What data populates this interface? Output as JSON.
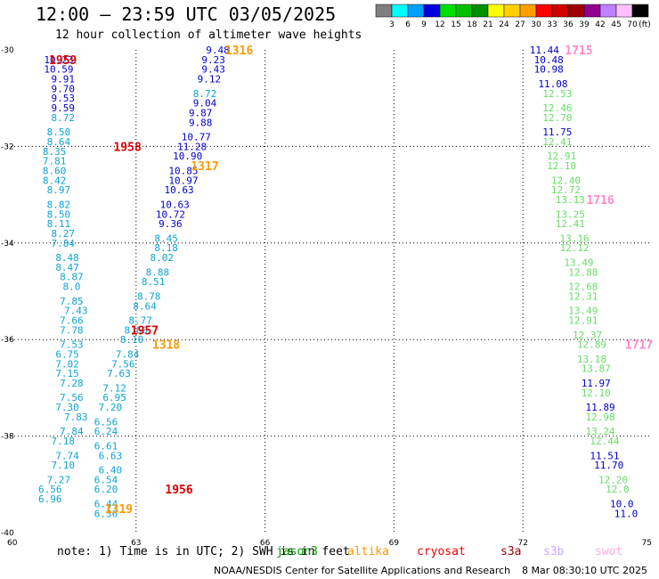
{
  "header": {
    "title": "12:00 — 23:59 UTC 03/05/2025",
    "subtitle": "12 hour collection of altimeter wave heights"
  },
  "colorbar": {
    "units": "(ft)",
    "colors": [
      "#7f7f7f",
      "#00ffff",
      "#00a0ff",
      "#0000e0",
      "#00e000",
      "#00c000",
      "#009000",
      "#ffff00",
      "#ffd000",
      "#ffa000",
      "#ff0000",
      "#d00000",
      "#a00000",
      "#900090",
      "#c080ff",
      "#ffc0ff",
      "#000000"
    ],
    "tick_labels": [
      "3",
      "6",
      "9",
      "12",
      "15",
      "18",
      "21",
      "24",
      "27",
      "30",
      "33",
      "36",
      "39",
      "42",
      "45",
      "70"
    ]
  },
  "note": "note: 1) Time is in UTC; 2) SWH is in feet",
  "legend": [
    {
      "name": "jason3",
      "color": "#00a000"
    },
    {
      "name": "altika",
      "color": "#ff9900"
    },
    {
      "name": "cryosat",
      "color": "#ee0000"
    },
    {
      "name": "s3a",
      "color": "#990000"
    },
    {
      "name": "s3b",
      "color": "#ccaaff"
    },
    {
      "name": "swot",
      "color": "#ffaadd"
    }
  ],
  "footer": {
    "credit": "NOAA/NESDIS Center for Satellite Applications and Research",
    "timestamp": "8 Mar 08:30:10 UTC 2025"
  },
  "chart_data": {
    "type": "scatter",
    "title": "12 hour collection of altimeter wave heights",
    "x_axis": {
      "ticks": [
        60,
        63,
        66,
        69,
        72,
        75
      ],
      "range": [
        60,
        75
      ],
      "grid": "dotted"
    },
    "y_axis": {
      "ticks": [
        -30,
        -32,
        -34,
        -36,
        -38,
        -40
      ],
      "range": [
        -40,
        -30
      ],
      "grid": "dotted"
    },
    "colors": {
      "cyan": "#0fa3d3",
      "blue": "#0000c8",
      "green": "#66dd66",
      "red": "#dd0000",
      "orange": "#ff9900",
      "pink": "#ff88cc"
    },
    "passes": [
      {
        "label": "1959",
        "satellite": "cryosat",
        "lon": 61.3,
        "lat": -30.2,
        "color": "red"
      },
      {
        "label": "1958",
        "satellite": "cryosat",
        "lon": 62.8,
        "lat": -32.0,
        "color": "red"
      },
      {
        "label": "1957",
        "satellite": "cryosat",
        "lon": 63.2,
        "lat": -35.8,
        "color": "red"
      },
      {
        "label": "1956",
        "satellite": "cryosat",
        "lon": 64.0,
        "lat": -39.1,
        "color": "red"
      },
      {
        "label": "1316",
        "satellite": "altika",
        "lon": 65.4,
        "lat": -30.0,
        "color": "orange"
      },
      {
        "label": "1317",
        "satellite": "altika",
        "lon": 64.6,
        "lat": -32.4,
        "color": "orange"
      },
      {
        "label": "1318",
        "satellite": "altika",
        "lon": 63.7,
        "lat": -36.1,
        "color": "orange"
      },
      {
        "label": "1319",
        "satellite": "altika",
        "lon": 62.6,
        "lat": -39.5,
        "color": "orange"
      },
      {
        "label": "1715",
        "satellite": "swot",
        "lon": 73.3,
        "lat": -30.0,
        "color": "pink"
      },
      {
        "label": "1716",
        "satellite": "swot",
        "lon": 73.8,
        "lat": -33.1,
        "color": "pink"
      },
      {
        "label": "1717",
        "satellite": "swot",
        "lon": 74.7,
        "lat": -36.1,
        "color": "pink"
      }
    ],
    "tracks": [
      {
        "name": "cryosat track 1959 (cyan/blue)",
        "points": [
          {
            "lon": 61.2,
            "lat": -30.2,
            "swh": 10.23,
            "color": "blue"
          },
          {
            "lon": 61.2,
            "lat": -30.4,
            "swh": 10.59,
            "color": "blue"
          },
          {
            "lon": 61.3,
            "lat": -30.6,
            "swh": 9.91,
            "color": "blue"
          },
          {
            "lon": 61.3,
            "lat": -30.8,
            "swh": 9.7,
            "color": "blue"
          },
          {
            "lon": 61.3,
            "lat": -31.0,
            "swh": 9.53,
            "color": "blue"
          },
          {
            "lon": 61.3,
            "lat": -31.2,
            "swh": 9.59,
            "color": "blue"
          },
          {
            "lon": 61.3,
            "lat": -31.4,
            "swh": 8.72,
            "color": "cyan"
          },
          {
            "lon": 61.2,
            "lat": -31.7,
            "swh": 8.5,
            "color": "cyan"
          },
          {
            "lon": 61.2,
            "lat": -31.9,
            "swh": 8.64,
            "color": "cyan"
          },
          {
            "lon": 61.1,
            "lat": -32.1,
            "swh": 8.35,
            "color": "cyan"
          },
          {
            "lon": 61.1,
            "lat": -32.3,
            "swh": 7.81,
            "color": "cyan"
          },
          {
            "lon": 61.1,
            "lat": -32.5,
            "swh": 8.6,
            "color": "cyan"
          },
          {
            "lon": 61.1,
            "lat": -32.7,
            "swh": 8.42,
            "color": "cyan"
          },
          {
            "lon": 61.2,
            "lat": -32.9,
            "swh": 8.97,
            "color": "cyan"
          },
          {
            "lon": 61.2,
            "lat": -33.2,
            "swh": 8.82,
            "color": "cyan"
          },
          {
            "lon": 61.2,
            "lat": -33.4,
            "swh": 8.5,
            "color": "cyan"
          },
          {
            "lon": 61.2,
            "lat": -33.6,
            "swh": 8.11,
            "color": "cyan"
          },
          {
            "lon": 61.3,
            "lat": -33.8,
            "swh": 8.27,
            "color": "cyan"
          },
          {
            "lon": 61.3,
            "lat": -34.0,
            "swh": 7.84,
            "color": "cyan"
          },
          {
            "lon": 61.4,
            "lat": -34.3,
            "swh": 8.48,
            "color": "cyan"
          },
          {
            "lon": 61.4,
            "lat": -34.5,
            "swh": 8.47,
            "color": "cyan"
          },
          {
            "lon": 61.5,
            "lat": -34.7,
            "swh": 8.87,
            "color": "cyan"
          },
          {
            "lon": 61.5,
            "lat": -34.9,
            "swh": 8.0,
            "color": "cyan"
          },
          {
            "lon": 61.5,
            "lat": -35.2,
            "swh": 7.85,
            "color": "cyan"
          },
          {
            "lon": 61.6,
            "lat": -35.4,
            "swh": 7.43,
            "color": "cyan"
          },
          {
            "lon": 61.5,
            "lat": -35.6,
            "swh": 7.66,
            "color": "cyan"
          },
          {
            "lon": 61.5,
            "lat": -35.8,
            "swh": 7.78,
            "color": "cyan"
          },
          {
            "lon": 61.5,
            "lat": -36.1,
            "swh": 7.53,
            "color": "cyan"
          },
          {
            "lon": 61.4,
            "lat": -36.3,
            "swh": 6.75,
            "color": "cyan"
          },
          {
            "lon": 61.4,
            "lat": -36.5,
            "swh": 7.02,
            "color": "cyan"
          },
          {
            "lon": 61.4,
            "lat": -36.7,
            "swh": 7.15,
            "color": "cyan"
          },
          {
            "lon": 61.5,
            "lat": -36.9,
            "swh": 7.28,
            "color": "cyan"
          },
          {
            "lon": 61.5,
            "lat": -37.2,
            "swh": 7.56,
            "color": "cyan"
          },
          {
            "lon": 61.4,
            "lat": -37.4,
            "swh": 7.3,
            "color": "cyan"
          },
          {
            "lon": 61.6,
            "lat": -37.6,
            "swh": 7.83,
            "color": "cyan"
          },
          {
            "lon": 61.5,
            "lat": -37.9,
            "swh": 7.84,
            "color": "cyan"
          },
          {
            "lon": 61.3,
            "lat": -38.1,
            "swh": 7.18,
            "color": "cyan"
          },
          {
            "lon": 61.4,
            "lat": -38.4,
            "swh": 7.74,
            "color": "cyan"
          },
          {
            "lon": 61.3,
            "lat": -38.6,
            "swh": 7.1,
            "color": "cyan"
          },
          {
            "lon": 61.2,
            "lat": -38.9,
            "swh": 7.27,
            "color": "cyan"
          },
          {
            "lon": 61.0,
            "lat": -39.1,
            "swh": 6.56,
            "color": "cyan"
          },
          {
            "lon": 61.0,
            "lat": -39.3,
            "swh": 6.96,
            "color": "cyan"
          }
        ]
      },
      {
        "name": "altika track 1317/1318 (blue/cyan)",
        "points": [
          {
            "lon": 64.9,
            "lat": -30.0,
            "swh": 9.48,
            "color": "blue"
          },
          {
            "lon": 64.8,
            "lat": -30.2,
            "swh": 9.23,
            "color": "blue"
          },
          {
            "lon": 64.8,
            "lat": -30.4,
            "swh": 9.43,
            "color": "blue"
          },
          {
            "lon": 64.7,
            "lat": -30.6,
            "swh": 9.12,
            "color": "blue"
          },
          {
            "lon": 64.6,
            "lat": -30.9,
            "swh": 8.72,
            "color": "cyan"
          },
          {
            "lon": 64.6,
            "lat": -31.1,
            "swh": 9.04,
            "color": "blue"
          },
          {
            "lon": 64.5,
            "lat": -31.3,
            "swh": 9.87,
            "color": "blue"
          },
          {
            "lon": 64.5,
            "lat": -31.5,
            "swh": 9.88,
            "color": "blue"
          },
          {
            "lon": 64.4,
            "lat": -31.8,
            "swh": 10.77,
            "color": "blue"
          },
          {
            "lon": 64.3,
            "lat": -32.0,
            "swh": 11.28,
            "color": "blue"
          },
          {
            "lon": 64.2,
            "lat": -32.2,
            "swh": 10.9,
            "color": "blue"
          },
          {
            "lon": 64.1,
            "lat": -32.5,
            "swh": 10.85,
            "color": "blue"
          },
          {
            "lon": 64.1,
            "lat": -32.7,
            "swh": 10.97,
            "color": "blue"
          },
          {
            "lon": 64.0,
            "lat": -32.9,
            "swh": 10.63,
            "color": "blue"
          },
          {
            "lon": 63.9,
            "lat": -33.2,
            "swh": 10.63,
            "color": "blue"
          },
          {
            "lon": 63.8,
            "lat": -33.4,
            "swh": 10.72,
            "color": "blue"
          },
          {
            "lon": 63.8,
            "lat": -33.6,
            "swh": 9.36,
            "color": "blue"
          },
          {
            "lon": 63.7,
            "lat": -33.9,
            "swh": 8.45,
            "color": "cyan"
          },
          {
            "lon": 63.7,
            "lat": -34.1,
            "swh": 8.18,
            "color": "cyan"
          },
          {
            "lon": 63.6,
            "lat": -34.3,
            "swh": 8.02,
            "color": "cyan"
          },
          {
            "lon": 63.5,
            "lat": -34.6,
            "swh": 8.88,
            "color": "cyan"
          },
          {
            "lon": 63.4,
            "lat": -34.8,
            "swh": 8.51,
            "color": "cyan"
          },
          {
            "lon": 63.3,
            "lat": -35.1,
            "swh": 8.78,
            "color": "cyan"
          },
          {
            "lon": 63.2,
            "lat": -35.3,
            "swh": 8.64,
            "color": "cyan"
          },
          {
            "lon": 63.1,
            "lat": -35.6,
            "swh": 8.77,
            "color": "cyan"
          },
          {
            "lon": 63.0,
            "lat": -35.8,
            "swh": 8.6,
            "color": "cyan"
          },
          {
            "lon": 62.9,
            "lat": -36.0,
            "swh": 8.1,
            "color": "cyan"
          },
          {
            "lon": 62.8,
            "lat": -36.3,
            "swh": 7.84,
            "color": "cyan"
          },
          {
            "lon": 62.7,
            "lat": -36.5,
            "swh": 7.56,
            "color": "cyan"
          },
          {
            "lon": 62.6,
            "lat": -36.7,
            "swh": 7.63,
            "color": "cyan"
          },
          {
            "lon": 62.5,
            "lat": -37.0,
            "swh": 7.12,
            "color": "cyan"
          },
          {
            "lon": 62.5,
            "lat": -37.2,
            "swh": 6.95,
            "color": "cyan"
          },
          {
            "lon": 62.4,
            "lat": -37.4,
            "swh": 7.2,
            "color": "cyan"
          },
          {
            "lon": 62.3,
            "lat": -37.7,
            "swh": 6.56,
            "color": "cyan"
          },
          {
            "lon": 62.3,
            "lat": -37.9,
            "swh": 6.24,
            "color": "cyan"
          },
          {
            "lon": 62.3,
            "lat": -38.2,
            "swh": 6.61,
            "color": "cyan"
          },
          {
            "lon": 62.4,
            "lat": -38.4,
            "swh": 6.63,
            "color": "cyan"
          },
          {
            "lon": 62.4,
            "lat": -38.7,
            "swh": 6.4,
            "color": "cyan"
          },
          {
            "lon": 62.3,
            "lat": -38.9,
            "swh": 6.54,
            "color": "cyan"
          },
          {
            "lon": 62.3,
            "lat": -39.1,
            "swh": 6.2,
            "color": "cyan"
          },
          {
            "lon": 62.3,
            "lat": -39.4,
            "swh": 6.44,
            "color": "cyan"
          },
          {
            "lon": 62.3,
            "lat": -39.6,
            "swh": 6.36,
            "color": "cyan"
          }
        ]
      },
      {
        "name": "swot track 1715/1716 (blue/green)",
        "points": [
          {
            "lon": 72.5,
            "lat": -30.0,
            "swh": 11.44,
            "color": "blue"
          },
          {
            "lon": 72.6,
            "lat": -30.2,
            "swh": 10.48,
            "color": "blue"
          },
          {
            "lon": 72.6,
            "lat": -30.4,
            "swh": 10.98,
            "color": "blue"
          },
          {
            "lon": 72.7,
            "lat": -30.7,
            "swh": 11.08,
            "color": "blue"
          },
          {
            "lon": 72.8,
            "lat": -30.9,
            "swh": 12.53,
            "color": "green"
          },
          {
            "lon": 72.8,
            "lat": -31.2,
            "swh": 12.46,
            "color": "green"
          },
          {
            "lon": 72.8,
            "lat": -31.4,
            "swh": 12.7,
            "color": "green"
          },
          {
            "lon": 72.8,
            "lat": -31.7,
            "swh": 11.75,
            "color": "blue"
          },
          {
            "lon": 72.8,
            "lat": -31.9,
            "swh": 12.41,
            "color": "green"
          },
          {
            "lon": 72.9,
            "lat": -32.2,
            "swh": 12.91,
            "color": "green"
          },
          {
            "lon": 72.9,
            "lat": -32.4,
            "swh": 12.1,
            "color": "green"
          },
          {
            "lon": 73.0,
            "lat": -32.7,
            "swh": 12.4,
            "color": "green"
          },
          {
            "lon": 73.0,
            "lat": -32.9,
            "swh": 12.72,
            "color": "green"
          },
          {
            "lon": 73.1,
            "lat": -33.1,
            "swh": 13.13,
            "color": "green"
          },
          {
            "lon": 73.1,
            "lat": -33.4,
            "swh": 13.25,
            "color": "green"
          },
          {
            "lon": 73.1,
            "lat": -33.6,
            "swh": 12.41,
            "color": "green"
          },
          {
            "lon": 73.2,
            "lat": -33.9,
            "swh": 13.16,
            "color": "green"
          },
          {
            "lon": 73.2,
            "lat": -34.1,
            "swh": 12.12,
            "color": "green"
          },
          {
            "lon": 73.3,
            "lat": -34.4,
            "swh": 13.49,
            "color": "green"
          },
          {
            "lon": 73.4,
            "lat": -34.6,
            "swh": 12.88,
            "color": "green"
          },
          {
            "lon": 73.4,
            "lat": -34.9,
            "swh": 12.68,
            "color": "green"
          },
          {
            "lon": 73.4,
            "lat": -35.1,
            "swh": 12.31,
            "color": "green"
          },
          {
            "lon": 73.4,
            "lat": -35.4,
            "swh": 13.49,
            "color": "green"
          },
          {
            "lon": 73.4,
            "lat": -35.6,
            "swh": 12.91,
            "color": "green"
          },
          {
            "lon": 73.5,
            "lat": -35.9,
            "swh": 12.37,
            "color": "green"
          },
          {
            "lon": 73.6,
            "lat": -36.1,
            "swh": 12.89,
            "color": "green"
          },
          {
            "lon": 73.6,
            "lat": -36.4,
            "swh": 13.18,
            "color": "green"
          },
          {
            "lon": 73.7,
            "lat": -36.6,
            "swh": 13.87,
            "color": "green"
          },
          {
            "lon": 73.7,
            "lat": -36.9,
            "swh": 11.97,
            "color": "blue"
          },
          {
            "lon": 73.7,
            "lat": -37.1,
            "swh": 12.1,
            "color": "green"
          },
          {
            "lon": 73.8,
            "lat": -37.4,
            "swh": 11.89,
            "color": "blue"
          },
          {
            "lon": 73.8,
            "lat": -37.6,
            "swh": 12.98,
            "color": "green"
          },
          {
            "lon": 73.8,
            "lat": -37.9,
            "swh": 13.24,
            "color": "green"
          },
          {
            "lon": 73.9,
            "lat": -38.1,
            "swh": 12.44,
            "color": "green"
          },
          {
            "lon": 73.9,
            "lat": -38.4,
            "swh": 11.51,
            "color": "blue"
          },
          {
            "lon": 74.0,
            "lat": -38.6,
            "swh": 11.7,
            "color": "blue"
          },
          {
            "lon": 74.1,
            "lat": -38.9,
            "swh": 12.2,
            "color": "green"
          },
          {
            "lon": 74.2,
            "lat": -39.1,
            "swh": 12.0,
            "color": "green"
          },
          {
            "lon": 74.3,
            "lat": -39.4,
            "swh": 10.0,
            "color": "blue"
          },
          {
            "lon": 74.4,
            "lat": -39.6,
            "swh": 11.0,
            "color": "blue"
          }
        ]
      }
    ]
  }
}
